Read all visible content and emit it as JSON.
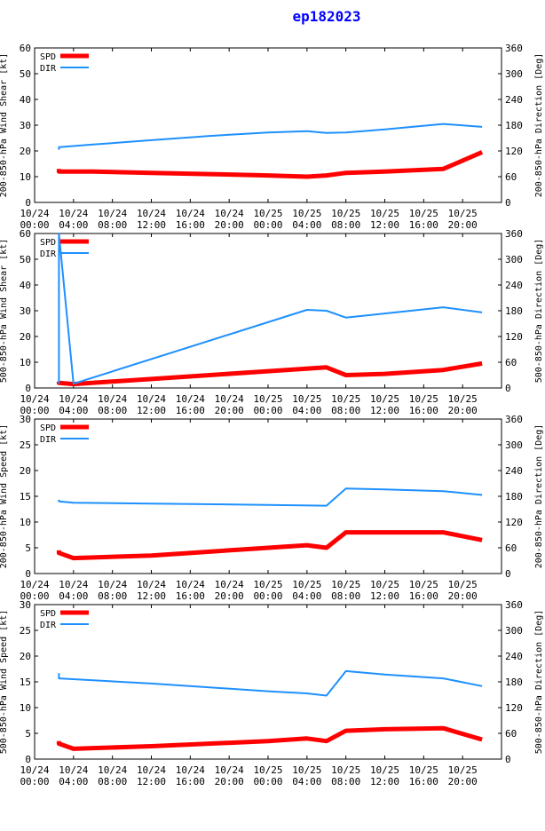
{
  "title": "ep182023",
  "x_ticks": [
    [
      "10/24",
      "00:00"
    ],
    [
      "10/24",
      "04:00"
    ],
    [
      "10/24",
      "08:00"
    ],
    [
      "10/24",
      "12:00"
    ],
    [
      "10/24",
      "16:00"
    ],
    [
      "10/24",
      "20:00"
    ],
    [
      "10/25",
      "00:00"
    ],
    [
      "10/25",
      "04:00"
    ],
    [
      "10/25",
      "08:00"
    ],
    [
      "10/25",
      "12:00"
    ],
    [
      "10/25",
      "16:00"
    ],
    [
      "10/25",
      "20:00"
    ]
  ],
  "legend": {
    "spd": "SPD",
    "dir": "DIR"
  },
  "colors": {
    "spd": "#ff0000",
    "dir": "#1e90ff"
  },
  "chart_data": [
    {
      "type": "line",
      "xlim": [
        0,
        48
      ],
      "ylabel": "200-850-hPa Wind Shear [kt]",
      "y2label": "200-850-hPa Direction [Deg]",
      "ylim": [
        0,
        60
      ],
      "yticks": [
        0,
        10,
        20,
        30,
        40,
        50,
        60
      ],
      "y2lim": [
        0,
        360
      ],
      "y2ticks": [
        0,
        60,
        120,
        180,
        240,
        300,
        360
      ],
      "series": [
        {
          "name": "SPD",
          "axis": "left",
          "x": [
            2.5,
            2.5,
            6,
            12,
            18,
            24,
            28,
            30,
            32,
            36,
            42,
            46
          ],
          "y": [
            13,
            12,
            12,
            11.5,
            11,
            10.5,
            10,
            10.5,
            11.5,
            12,
            13,
            19.5
          ]
        },
        {
          "name": "DIR",
          "axis": "right",
          "x": [
            2.5,
            2.5,
            6,
            12,
            18,
            24,
            28,
            30,
            32,
            36,
            42,
            46
          ],
          "y": [
            123,
            129,
            135,
            145,
            155,
            163,
            166,
            162,
            163,
            170,
            183,
            176
          ]
        }
      ]
    },
    {
      "type": "line",
      "xlim": [
        0,
        48
      ],
      "ylabel": "500-850-hPa Wind Shear [kt]",
      "y2label": "500-850-hPa Direction [Deg]",
      "ylim": [
        0,
        60
      ],
      "yticks": [
        0,
        10,
        20,
        30,
        40,
        50,
        60
      ],
      "y2lim": [
        0,
        360
      ],
      "y2ticks": [
        0,
        60,
        120,
        180,
        240,
        300,
        360
      ],
      "series": [
        {
          "name": "SPD",
          "axis": "left",
          "x": [
            2.5,
            2.5,
            4,
            12,
            24,
            30,
            32,
            36,
            42,
            46
          ],
          "y": [
            2.5,
            2,
            1.5,
            3.5,
            6.5,
            8,
            5,
            5.5,
            7,
            9.5
          ]
        },
        {
          "name": "DIR",
          "axis": "right",
          "x": [
            2.5,
            2.5,
            4,
            28,
            30,
            32,
            42,
            46
          ],
          "y": [
            10,
            360,
            10,
            182,
            180,
            164,
            188,
            176
          ]
        }
      ]
    },
    {
      "type": "line",
      "xlim": [
        0,
        48
      ],
      "ylabel": "200-850-hPa Wind Speed [kt]",
      "y2label": "200-850-hPa Direction [Deg]",
      "ylim": [
        0,
        30
      ],
      "yticks": [
        0,
        5,
        10,
        15,
        20,
        25,
        30
      ],
      "y2lim": [
        0,
        360
      ],
      "y2ticks": [
        0,
        60,
        120,
        180,
        240,
        300,
        360
      ],
      "series": [
        {
          "name": "SPD",
          "axis": "left",
          "x": [
            2.5,
            2.5,
            4,
            12,
            24,
            28,
            30,
            32,
            36,
            42,
            46
          ],
          "y": [
            4.5,
            4,
            3,
            3.5,
            5,
            5.5,
            5,
            8,
            8,
            8,
            6.5
          ]
        },
        {
          "name": "DIR",
          "axis": "right",
          "x": [
            2.5,
            2.5,
            4,
            12,
            24,
            30,
            32,
            36,
            42,
            46
          ],
          "y": [
            172,
            168,
            165,
            163,
            160,
            158,
            198,
            196,
            192,
            183
          ]
        }
      ]
    },
    {
      "type": "line",
      "xlim": [
        0,
        48
      ],
      "ylabel": "500-850-hPa Wind Speed [kt]",
      "y2label": "500-850-hPa Direction [Deg]",
      "ylim": [
        0,
        30
      ],
      "yticks": [
        0,
        5,
        10,
        15,
        20,
        25,
        30
      ],
      "y2lim": [
        0,
        360
      ],
      "y2ticks": [
        0,
        60,
        120,
        180,
        240,
        300,
        360
      ],
      "series": [
        {
          "name": "SPD",
          "axis": "left",
          "x": [
            2.5,
            2.5,
            4,
            12,
            24,
            28,
            30,
            32,
            36,
            42,
            46
          ],
          "y": [
            3.5,
            3,
            2,
            2.5,
            3.5,
            4,
            3.5,
            5.5,
            5.8,
            6,
            3.8
          ]
        },
        {
          "name": "DIR",
          "axis": "right",
          "x": [
            2.5,
            2.5,
            12,
            24,
            28,
            30,
            32,
            36,
            42,
            46
          ],
          "y": [
            200,
            188,
            176,
            158,
            153,
            148,
            205,
            197,
            188,
            170
          ]
        }
      ]
    }
  ]
}
